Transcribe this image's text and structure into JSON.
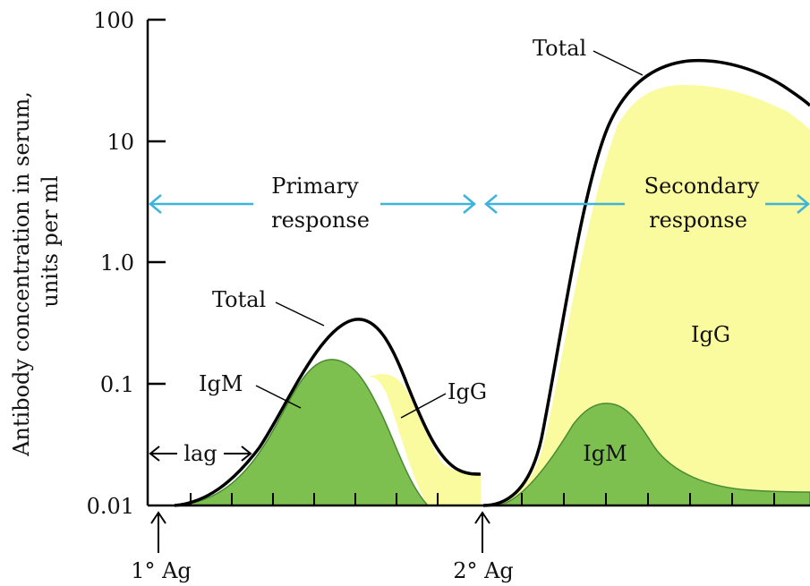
{
  "figure": {
    "ylabel_line1": "Antibody concentration in serum,",
    "ylabel_line2": "units per ml",
    "y_ticks": [
      "100",
      "10",
      "1.0",
      "0.1",
      "0.01"
    ],
    "primary_label_line1": "Primary",
    "primary_label_line2": "response",
    "secondary_label_line1": "Secondary",
    "secondary_label_line2": "response",
    "total_label_primary": "Total",
    "total_label_secondary": "Total",
    "igm_label_primary": "IgM",
    "igg_label_primary": "IgG",
    "igm_label_secondary": "IgM",
    "igg_label_secondary": "IgG",
    "lag_label": "lag",
    "antigen1_label": "1° Ag",
    "antigen2_label": "2° Ag"
  },
  "chart_data": {
    "type": "area",
    "ylim": [
      0.01,
      100
    ],
    "y_scale": "log",
    "colors": {
      "igm": "#7dc050",
      "igg": "#fafa9e",
      "total": "#000000",
      "arrow": "#3cb4dc"
    }
  }
}
